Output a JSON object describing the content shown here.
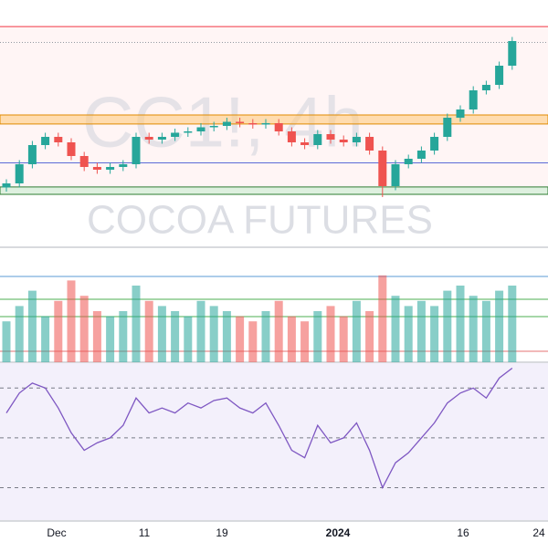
{
  "chart_data": {
    "type": "candlestick",
    "watermark": "CC1!, 4h",
    "subtitle": "COCOA FUTURES",
    "x_labels": [
      "Dec",
      "11",
      "19",
      "2024",
      "16",
      "24"
    ],
    "ylim": [
      3900,
      4800
    ],
    "up_color": "#26a69a",
    "down_color": "#ef5350",
    "open": [
      4115,
      4130,
      4200,
      4270,
      4300,
      4280,
      4230,
      4190,
      4180,
      4190,
      4200,
      4300,
      4290,
      4300,
      4315,
      4320,
      4335,
      4340,
      4355,
      4350,
      4345,
      4350,
      4320,
      4280,
      4270,
      4310,
      4290,
      4280,
      4300,
      4250,
      4120,
      4200,
      4220,
      4250,
      4300,
      4370,
      4400,
      4470,
      4490,
      4560
    ],
    "high": [
      4145,
      4215,
      4285,
      4315,
      4315,
      4295,
      4245,
      4205,
      4205,
      4215,
      4315,
      4315,
      4315,
      4330,
      4335,
      4350,
      4355,
      4370,
      4370,
      4365,
      4365,
      4365,
      4335,
      4295,
      4325,
      4325,
      4305,
      4315,
      4315,
      4265,
      4215,
      4235,
      4265,
      4315,
      4385,
      4415,
      4485,
      4505,
      4575,
      4665
    ],
    "low": [
      4100,
      4115,
      4185,
      4255,
      4265,
      4215,
      4175,
      4165,
      4165,
      4175,
      4185,
      4275,
      4275,
      4285,
      4300,
      4305,
      4320,
      4325,
      4335,
      4330,
      4330,
      4305,
      4265,
      4255,
      4255,
      4275,
      4265,
      4265,
      4235,
      4080,
      4105,
      4185,
      4205,
      4235,
      4285,
      4355,
      4385,
      4455,
      4475,
      4545
    ],
    "close": [
      4130,
      4200,
      4270,
      4300,
      4280,
      4230,
      4190,
      4180,
      4190,
      4200,
      4300,
      4290,
      4300,
      4315,
      4320,
      4335,
      4340,
      4355,
      4350,
      4345,
      4350,
      4320,
      4280,
      4270,
      4310,
      4290,
      4280,
      4300,
      4250,
      4120,
      4200,
      4220,
      4250,
      4300,
      4370,
      4400,
      4470,
      4490,
      4560,
      4650
    ],
    "levels": [
      {
        "value": 4703,
        "color": "#f23645"
      },
      {
        "value": 4645,
        "color": "#9598a1"
      },
      {
        "value": 4205,
        "color": "#5b6bd8"
      }
    ],
    "zones": [
      {
        "from": 4347,
        "to": 4380,
        "color": "#ffcc80",
        "border": "#e08a00"
      },
      {
        "from": 4090,
        "to": 4117,
        "color": "#c8e6c9",
        "border": "#2e7d32"
      }
    ],
    "volume": {
      "ylim": [
        0,
        100
      ],
      "values": [
        40,
        55,
        70,
        45,
        60,
        80,
        65,
        50,
        45,
        50,
        75,
        60,
        55,
        50,
        45,
        60,
        55,
        50,
        45,
        40,
        50,
        60,
        45,
        40,
        50,
        55,
        45,
        60,
        50,
        85,
        65,
        55,
        60,
        55,
        70,
        75,
        65,
        60,
        70,
        75
      ]
    },
    "rsi": {
      "ylim": [
        17,
        80
      ],
      "color": "#7e57c2",
      "yticks": [
        70,
        50,
        30
      ],
      "values": [
        60,
        68,
        72,
        70,
        62,
        52,
        45,
        48,
        50,
        55,
        66,
        60,
        62,
        60,
        64,
        62,
        65,
        66,
        62,
        60,
        64,
        55,
        45,
        42,
        55,
        48,
        50,
        56,
        45,
        30,
        40,
        44,
        50,
        56,
        64,
        68,
        70,
        66,
        74,
        78
      ]
    }
  }
}
